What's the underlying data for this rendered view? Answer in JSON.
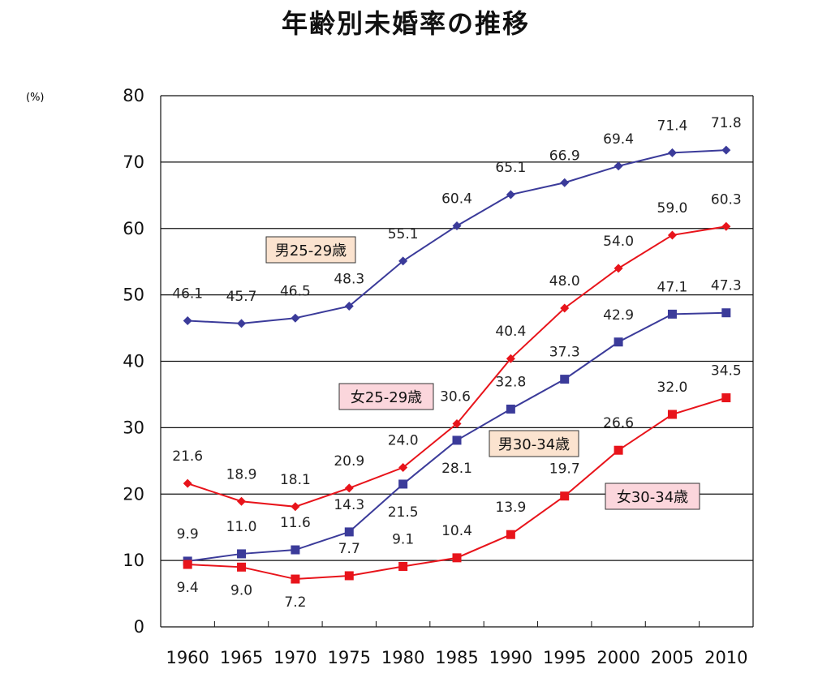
{
  "title": "年齢別未婚率の推移",
  "chart_data": {
    "type": "line",
    "title": "年齢別未婚率の推移",
    "ylabel": "(%)",
    "xlabel": "",
    "ylim": [
      0,
      80
    ],
    "yticks": [
      0,
      10,
      20,
      30,
      40,
      50,
      60,
      70,
      80
    ],
    "grid": true,
    "categories": [
      "1960",
      "1965",
      "1970",
      "1975",
      "1980",
      "1985",
      "1990",
      "1995",
      "2000",
      "2005",
      "2010"
    ],
    "series": [
      {
        "name": "男25-29歳",
        "color": "#3b3b9a",
        "marker": "diamond",
        "box_color": "#fbe3cf",
        "values": [
          46.1,
          45.7,
          46.5,
          48.3,
          55.1,
          60.4,
          65.1,
          66.9,
          69.4,
          71.4,
          71.8
        ]
      },
      {
        "name": "女25-29歳",
        "color": "#e8141b",
        "marker": "diamond",
        "box_color": "#fbd6dc",
        "values": [
          21.6,
          18.9,
          18.1,
          20.9,
          24.0,
          30.6,
          40.4,
          48.0,
          54.0,
          59.0,
          60.3
        ]
      },
      {
        "name": "男30-34歳",
        "color": "#3b3b9a",
        "marker": "square",
        "box_color": "#fbe3cf",
        "values": [
          9.9,
          11.0,
          11.6,
          14.3,
          21.5,
          28.1,
          32.8,
          37.3,
          42.9,
          47.1,
          47.3
        ]
      },
      {
        "name": "女30-34歳",
        "color": "#e8141b",
        "marker": "square",
        "box_color": "#fbd6dc",
        "values": [
          9.4,
          9.0,
          7.2,
          7.7,
          9.1,
          10.4,
          13.9,
          19.7,
          26.6,
          32.0,
          34.5
        ]
      }
    ],
    "data_labels": [
      [
        "46.1",
        "45.7",
        "46.5",
        "48.3",
        "55.1",
        "60.4",
        "65.1",
        "66.9",
        "69.4",
        "71.4",
        "71.8"
      ],
      [
        "21.6",
        "18.9",
        "18.1",
        "20.9",
        "24.0",
        "30.6",
        "40.4",
        "48.0",
        "54.0",
        "59.0",
        "60.3"
      ],
      [
        "9.9",
        "11.0",
        "11.6",
        "14.3",
        "21.5",
        "28.1",
        "32.8",
        "37.3",
        "42.9",
        "47.1",
        "47.3"
      ],
      [
        "9.4",
        "9.0",
        "7.2",
        "7.7",
        "9.1",
        "10.4",
        "13.9",
        "19.7",
        "26.6",
        "32.0",
        "34.5"
      ]
    ]
  }
}
